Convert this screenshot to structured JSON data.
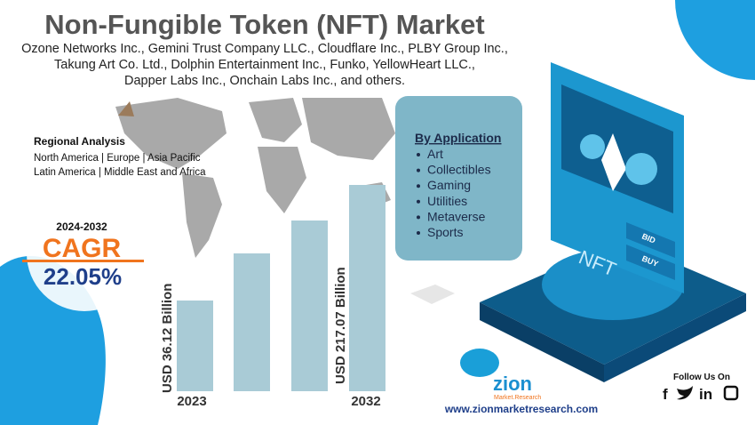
{
  "header": {
    "title": "Non-Fungible Token (NFT) Market",
    "companies": [
      "Ozone Networks Inc., Gemini Trust Company LLC., Cloudflare Inc., PLBY Group Inc.,",
      "Takung Art Co. Ltd., Dolphin Entertainment Inc., Funko, YellowHeart LLC.,",
      "Dapper Labs Inc., Onchain Labs Inc., and others."
    ]
  },
  "regional": {
    "title": "Regional Analysis",
    "lines": [
      "North America | Europe | Asia Pacific",
      "Latin America | Middle East and Africa"
    ]
  },
  "cagr": {
    "period": "2024-2032",
    "label": "CAGR",
    "value": "22.05%"
  },
  "market": {
    "start": {
      "value": "USD 36.12 Billion",
      "year": "2023"
    },
    "end": {
      "value": "USD 217.07 Billion",
      "year": "2032"
    }
  },
  "application": {
    "title": "By Application",
    "items": [
      "Art",
      "Collectibles",
      "Gaming",
      "Utilities",
      "Metaverse",
      "Sports"
    ]
  },
  "nft_graphic": {
    "bid": "BID",
    "buy": "BUY",
    "label": "NFT"
  },
  "logo": {
    "name": "zion",
    "tagline": "Market.Research"
  },
  "website": "www.zionmarketresearch.com",
  "social": {
    "title": "Follow Us On",
    "icons": [
      "f",
      "in"
    ]
  }
}
